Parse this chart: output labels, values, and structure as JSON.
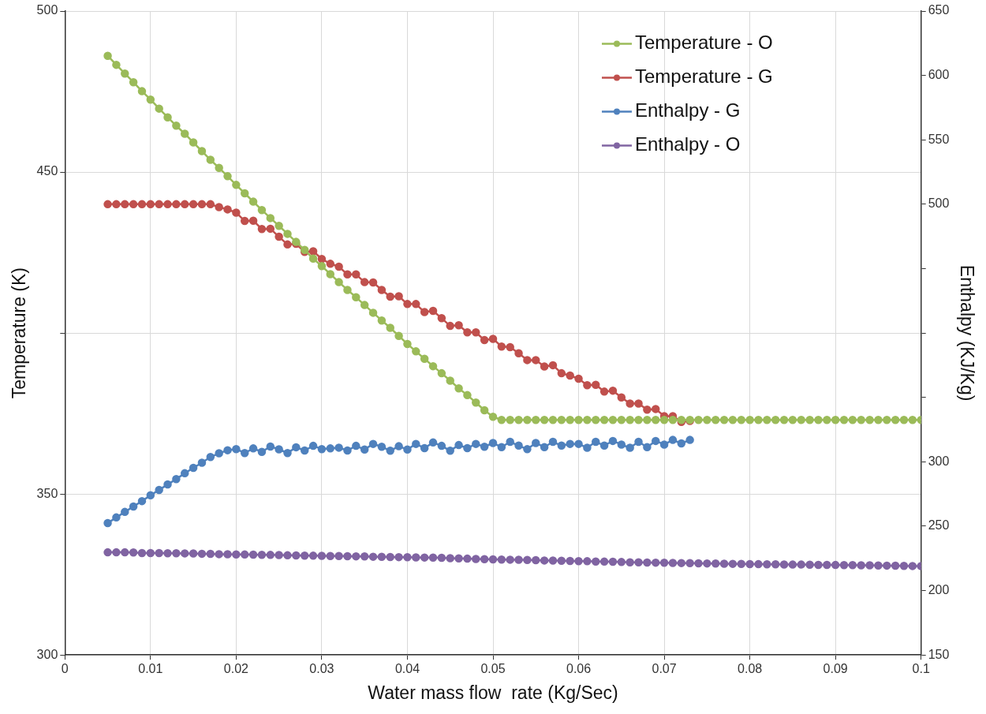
{
  "chart_data": {
    "type": "line",
    "xlabel": "Water mass flow  rate (Kg/Sec)",
    "ylabel": "Temperature (K)",
    "y2label": "Enthalpy (KJ/Kg)",
    "xlim": [
      0,
      0.1
    ],
    "xticks": [
      0,
      0.01,
      0.02,
      0.03,
      0.04,
      0.05,
      0.06,
      0.07,
      0.08,
      0.09,
      0.1
    ],
    "ylim": [
      300,
      500
    ],
    "yticks": [
      300,
      350,
      {
        "value": 400,
        "label": null
      },
      450,
      500
    ],
    "y2lim": [
      150,
      650
    ],
    "y2ticks": [
      150,
      200,
      250,
      300,
      {
        "value": 350,
        "label": null
      },
      {
        "value": 400,
        "label": null
      },
      {
        "value": 450,
        "label": null
      },
      500,
      550,
      600,
      650
    ],
    "grid": true,
    "legend": "top right",
    "marker": "circle",
    "line_style": "solid",
    "series": [
      {
        "name": "Temperature - O",
        "color": "#9bbb59",
        "x": [
          0.005,
          0.006,
          0.007,
          0.008,
          0.009,
          0.01,
          0.011,
          0.012,
          0.013,
          0.014,
          0.015,
          0.016,
          0.017,
          0.018,
          0.019,
          0.02,
          0.021,
          0.022,
          0.023,
          0.024,
          0.025,
          0.026,
          0.027,
          0.028,
          0.029,
          0.03,
          0.031,
          0.032,
          0.033,
          0.034,
          0.035,
          0.036,
          0.037,
          0.038,
          0.039,
          0.04,
          0.041,
          0.042,
          0.043,
          0.044,
          0.045,
          0.046,
          0.047,
          0.048,
          0.049,
          0.05,
          0.051,
          0.052,
          0.053,
          0.054,
          0.055,
          0.056,
          0.057,
          0.058,
          0.059,
          0.06,
          0.061,
          0.062,
          0.063,
          0.064,
          0.065,
          0.066,
          0.067,
          0.068,
          0.069,
          0.07,
          0.071,
          0.072,
          0.073,
          0.074,
          0.075,
          0.076,
          0.077,
          0.078,
          0.079,
          0.08,
          0.081,
          0.082,
          0.083,
          0.084,
          0.085,
          0.086,
          0.087,
          0.088,
          0.089,
          0.09,
          0.091,
          0.092,
          0.093,
          0.094,
          0.095,
          0.096,
          0.097,
          0.098,
          0.099,
          0.1
        ],
        "values": [
          486.1,
          483.3,
          480.6,
          477.9,
          475.1,
          472.5,
          469.7,
          467.0,
          464.4,
          461.9,
          459.2,
          456.5,
          453.8,
          451.3,
          448.7,
          446.0,
          443.4,
          440.8,
          438.2,
          435.7,
          433.3,
          430.8,
          428.3,
          425.8,
          423.1,
          420.8,
          418.3,
          415.8,
          413.4,
          411.1,
          408.7,
          406.3,
          403.9,
          401.6,
          399.1,
          396.6,
          394.3,
          392.0,
          389.7,
          387.5,
          385.2,
          382.8,
          380.7,
          378.4,
          376.0,
          374.0,
          373.0,
          373.0,
          373.0,
          373.0,
          373.0,
          373.0,
          373.0,
          373.0,
          373.0,
          373.0,
          373.0,
          373.0,
          373.0,
          373.0,
          373.0,
          373.0,
          373.0,
          373.0,
          373.0,
          373.0,
          373.0,
          373.0,
          373.0,
          373.0,
          373.0,
          373.0,
          373.0,
          373.0,
          373.0,
          373.0,
          373.0,
          373.0,
          373.0,
          373.0,
          373.0,
          373.0,
          373.0,
          373.0,
          373.0,
          373.0,
          373.0,
          373.0,
          373.0,
          373.0,
          373.0,
          373.0,
          373.0,
          373.0,
          373.0,
          373.0
        ]
      },
      {
        "name": "Temperature - G",
        "color": "#c0504d",
        "x": [
          0.005,
          0.006,
          0.007,
          0.008,
          0.009,
          0.01,
          0.011,
          0.012,
          0.013,
          0.014,
          0.015,
          0.016,
          0.017,
          0.018,
          0.019,
          0.02,
          0.021,
          0.022,
          0.023,
          0.024,
          0.025,
          0.026,
          0.027,
          0.028,
          0.029,
          0.03,
          0.031,
          0.032,
          0.033,
          0.034,
          0.035,
          0.036,
          0.037,
          0.038,
          0.039,
          0.04,
          0.041,
          0.042,
          0.043,
          0.044,
          0.045,
          0.046,
          0.047,
          0.048,
          0.049,
          0.05,
          0.051,
          0.052,
          0.053,
          0.054,
          0.055,
          0.056,
          0.057,
          0.058,
          0.059,
          0.06,
          0.061,
          0.062,
          0.063,
          0.064,
          0.065,
          0.066,
          0.067,
          0.068,
          0.069,
          0.07,
          0.071,
          0.072,
          0.073
        ],
        "values": [
          440.0,
          440.0,
          440.0,
          440.0,
          440.0,
          440.0,
          440.0,
          440.0,
          440.0,
          440.0,
          440.0,
          440.0,
          440.0,
          439.1,
          438.4,
          437.4,
          434.8,
          434.9,
          432.3,
          432.4,
          429.9,
          427.5,
          427.7,
          425.2,
          425.4,
          423.0,
          421.5,
          420.6,
          418.2,
          418.2,
          415.8,
          415.7,
          413.4,
          411.3,
          411.4,
          409.0,
          409.0,
          406.5,
          406.9,
          404.6,
          402.2,
          402.4,
          400.2,
          400.2,
          397.8,
          398.2,
          395.8,
          395.6,
          393.7,
          391.6,
          391.6,
          389.6,
          390.0,
          387.5,
          386.8,
          385.8,
          383.8,
          383.9,
          381.8,
          382.1,
          380.0,
          378.1,
          378.1,
          376.2,
          376.4,
          374.2,
          374.2,
          372.4,
          372.7
        ]
      },
      {
        "name": "Enthalpy - G",
        "color": "#4f81bd",
        "axis": "y2",
        "x": [
          0.005,
          0.006,
          0.007,
          0.008,
          0.009,
          0.01,
          0.011,
          0.012,
          0.013,
          0.014,
          0.015,
          0.016,
          0.017,
          0.018,
          0.019,
          0.02,
          0.021,
          0.022,
          0.023,
          0.024,
          0.025,
          0.026,
          0.027,
          0.028,
          0.029,
          0.03,
          0.031,
          0.032,
          0.033,
          0.034,
          0.035,
          0.036,
          0.037,
          0.038,
          0.039,
          0.04,
          0.041,
          0.042,
          0.043,
          0.044,
          0.045,
          0.046,
          0.047,
          0.048,
          0.049,
          0.05,
          0.051,
          0.052,
          0.053,
          0.054,
          0.055,
          0.056,
          0.057,
          0.058,
          0.059,
          0.06,
          0.061,
          0.062,
          0.063,
          0.064,
          0.065,
          0.066,
          0.067,
          0.068,
          0.069,
          0.07,
          0.071,
          0.072,
          0.073
        ],
        "values": [
          252.4,
          256.8,
          261.1,
          265.3,
          269.5,
          274.0,
          278.2,
          282.4,
          286.6,
          291.1,
          295.3,
          299.3,
          303.7,
          306.6,
          309.0,
          309.9,
          306.8,
          310.4,
          307.7,
          311.9,
          309.7,
          306.8,
          311.3,
          308.8,
          312.4,
          309.9,
          310.4,
          311.0,
          308.8,
          312.4,
          309.5,
          313.9,
          311.7,
          308.6,
          312.1,
          309.5,
          313.9,
          310.6,
          315.0,
          312.4,
          308.6,
          313.0,
          310.6,
          313.9,
          311.7,
          314.6,
          311.4,
          315.5,
          312.6,
          309.8,
          314.6,
          311.4,
          315.5,
          312.6,
          313.9,
          313.9,
          310.9,
          315.5,
          312.6,
          316.2,
          313.4,
          310.9,
          315.5,
          311.4,
          316.2,
          313.4,
          317.0,
          314.3,
          317.0
        ]
      },
      {
        "name": "Enthalpy - O",
        "color": "#8064a2",
        "axis": "y2",
        "x": [
          0.005,
          0.006,
          0.007,
          0.008,
          0.009,
          0.01,
          0.011,
          0.012,
          0.013,
          0.014,
          0.015,
          0.016,
          0.017,
          0.018,
          0.019,
          0.02,
          0.021,
          0.022,
          0.023,
          0.024,
          0.025,
          0.026,
          0.027,
          0.028,
          0.029,
          0.03,
          0.031,
          0.032,
          0.033,
          0.034,
          0.035,
          0.036,
          0.037,
          0.038,
          0.039,
          0.04,
          0.041,
          0.042,
          0.043,
          0.044,
          0.045,
          0.046,
          0.047,
          0.048,
          0.049,
          0.05,
          0.051,
          0.052,
          0.053,
          0.054,
          0.055,
          0.056,
          0.057,
          0.058,
          0.059,
          0.06,
          0.061,
          0.062,
          0.063,
          0.064,
          0.065,
          0.066,
          0.067,
          0.068,
          0.069,
          0.07,
          0.071,
          0.072,
          0.073,
          0.074,
          0.075,
          0.076,
          0.077,
          0.078,
          0.079,
          0.08,
          0.081,
          0.082,
          0.083,
          0.084,
          0.085,
          0.086,
          0.087,
          0.088,
          0.089,
          0.09,
          0.091,
          0.092,
          0.093,
          0.094,
          0.095,
          0.096,
          0.097,
          0.098,
          0.099,
          0.1
        ],
        "values": [
          229.7,
          229.7,
          229.7,
          229.6,
          229.2,
          229.1,
          229.1,
          229.0,
          229.0,
          228.9,
          228.8,
          228.6,
          228.5,
          228.3,
          228.2,
          228.1,
          228.0,
          227.9,
          227.8,
          227.7,
          227.6,
          227.4,
          227.3,
          227.2,
          227.1,
          227.0,
          226.9,
          226.8,
          226.7,
          226.6,
          226.5,
          226.3,
          226.2,
          226.1,
          226.0,
          225.9,
          225.8,
          225.7,
          225.6,
          225.5,
          225.2,
          225.0,
          224.8,
          224.6,
          224.4,
          224.2,
          224.1,
          224.0,
          223.9,
          223.8,
          223.6,
          223.4,
          223.3,
          223.2,
          223.0,
          222.9,
          222.8,
          222.6,
          222.5,
          222.4,
          222.2,
          222.0,
          221.9,
          221.8,
          221.7,
          221.6,
          221.5,
          221.4,
          221.3,
          221.2,
          221.1,
          221.0,
          220.9,
          220.8,
          220.7,
          220.6,
          220.5,
          220.4,
          220.4,
          220.3,
          220.2,
          220.2,
          220.1,
          220.0,
          220.0,
          219.9,
          219.8,
          219.8,
          219.7,
          219.6,
          219.5,
          219.4,
          219.3,
          219.2,
          219.1,
          219.0
        ]
      }
    ]
  }
}
